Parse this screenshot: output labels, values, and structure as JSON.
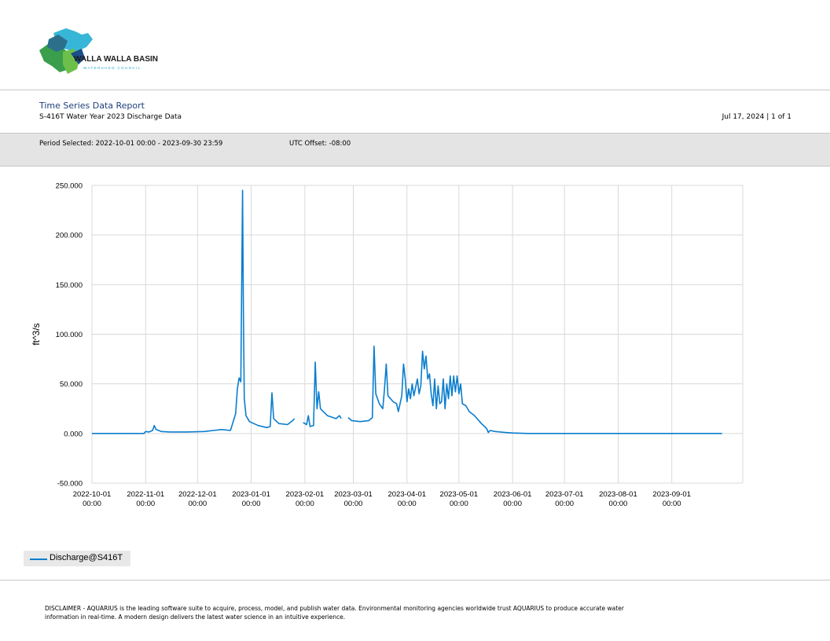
{
  "logo": {
    "line1": "WALLA WALLA BASIN",
    "line2": "WATERSHED COUNCIL"
  },
  "report": {
    "title": "Time Series Data Report",
    "subtitle": "S-416T Water Year 2023 Discharge Data",
    "date_page": "Jul 17, 2024 | 1 of 1",
    "period": "Period Selected: 2022-10-01 00:00 - 2023-09-30 23:59",
    "utc": "UTC Offset: -08:00"
  },
  "colors": {
    "series": "#0a7dcd",
    "grid": "#d9d9d9",
    "title": "#1f3f7a",
    "band": "#e4e4e4"
  },
  "chart_data": {
    "type": "line",
    "ylabel": "ft^3/s",
    "ylim": [
      -50,
      250
    ],
    "yticks": [
      {
        "v": 250,
        "label": "250.000"
      },
      {
        "v": 200,
        "label": "200.000"
      },
      {
        "v": 150,
        "label": "150.000"
      },
      {
        "v": 100,
        "label": "100.000"
      },
      {
        "v": 50,
        "label": "50.000"
      },
      {
        "v": 0,
        "label": "0.000"
      },
      {
        "v": -50,
        "label": "-50.000"
      }
    ],
    "xlim": [
      "2022-10-01",
      "2023-10-12"
    ],
    "xticks": [
      {
        "date": "2022-10-01",
        "label1": "2022-10-01",
        "label2": "00:00"
      },
      {
        "date": "2022-11-01",
        "label1": "2022-11-01",
        "label2": "00:00"
      },
      {
        "date": "2022-12-01",
        "label1": "2022-12-01",
        "label2": "00:00"
      },
      {
        "date": "2023-01-01",
        "label1": "2023-01-01",
        "label2": "00:00"
      },
      {
        "date": "2023-02-01",
        "label1": "2023-02-01",
        "label2": "00:00"
      },
      {
        "date": "2023-03-01",
        "label1": "2023-03-01",
        "label2": "00:00"
      },
      {
        "date": "2023-04-01",
        "label1": "2023-04-01",
        "label2": "00:00"
      },
      {
        "date": "2023-05-01",
        "label1": "2023-05-01",
        "label2": "00:00"
      },
      {
        "date": "2023-06-01",
        "label1": "2023-06-01",
        "label2": "00:00"
      },
      {
        "date": "2023-07-01",
        "label1": "2023-07-01",
        "label2": "00:00"
      },
      {
        "date": "2023-08-01",
        "label1": "2023-08-01",
        "label2": "00:00"
      },
      {
        "date": "2023-09-01",
        "label1": "2023-09-01",
        "label2": "00:00"
      }
    ],
    "grid": true,
    "legend_position": "bottom-left",
    "series": [
      {
        "name": "Discharge@S416T",
        "points": [
          [
            "2022-10-01",
            0
          ],
          [
            "2022-10-31",
            0
          ],
          [
            "2022-11-01",
            2
          ],
          [
            "2022-11-03",
            1.5
          ],
          [
            "2022-11-05",
            3
          ],
          [
            "2022-11-06",
            8
          ],
          [
            "2022-11-07",
            4
          ],
          [
            "2022-11-10",
            2
          ],
          [
            "2022-11-15",
            1.5
          ],
          [
            "2022-11-25",
            1.5
          ],
          [
            "2022-12-01",
            1.8
          ],
          [
            "2022-12-05",
            2
          ],
          [
            "2022-12-10",
            3
          ],
          [
            "2022-12-15",
            4
          ],
          [
            "2022-12-20",
            3
          ],
          [
            "2022-12-23",
            20
          ],
          [
            "2022-12-24",
            45
          ],
          [
            "2022-12-25",
            56
          ],
          [
            "2022-12-26",
            52
          ],
          [
            "2022-12-27",
            245
          ],
          [
            "2022-12-27T12:00",
            120
          ],
          [
            "2022-12-28",
            35
          ],
          [
            "2022-12-29",
            18
          ],
          [
            "2022-12-31",
            12
          ],
          [
            "2023-01-05",
            8
          ],
          [
            "2023-01-10",
            6
          ],
          [
            "2023-01-12",
            7
          ],
          [
            "2023-01-13",
            41
          ],
          [
            "2023-01-14",
            15
          ],
          [
            "2023-01-17",
            10
          ],
          [
            "2023-01-22",
            9
          ],
          [
            "2023-01-25",
            13
          ],
          [
            "2023-01-26",
            15
          ],
          [
            "2023-01-27",
            null
          ],
          [
            "2023-01-31",
            11
          ],
          [
            "2023-02-02",
            9
          ],
          [
            "2023-02-03",
            18
          ],
          [
            "2023-02-04",
            7
          ],
          [
            "2023-02-06",
            8
          ],
          [
            "2023-02-07",
            72
          ],
          [
            "2023-02-08",
            25
          ],
          [
            "2023-02-09",
            42
          ],
          [
            "2023-02-10",
            25
          ],
          [
            "2023-02-14",
            18
          ],
          [
            "2023-02-19",
            15
          ],
          [
            "2023-02-21",
            18
          ],
          [
            "2023-02-22",
            15
          ],
          [
            "2023-02-23",
            null
          ],
          [
            "2023-02-26",
            16
          ],
          [
            "2023-02-28",
            13
          ],
          [
            "2023-03-05",
            12
          ],
          [
            "2023-03-10",
            13
          ],
          [
            "2023-03-12",
            16
          ],
          [
            "2023-03-13",
            88
          ],
          [
            "2023-03-14",
            40
          ],
          [
            "2023-03-16",
            30
          ],
          [
            "2023-03-18",
            25
          ],
          [
            "2023-03-19",
            45
          ],
          [
            "2023-03-20",
            70
          ],
          [
            "2023-03-21",
            38
          ],
          [
            "2023-03-24",
            32
          ],
          [
            "2023-03-26",
            30
          ],
          [
            "2023-03-27",
            22
          ],
          [
            "2023-03-29",
            38
          ],
          [
            "2023-03-30",
            70
          ],
          [
            "2023-03-31",
            55
          ],
          [
            "2023-04-01",
            32
          ],
          [
            "2023-04-02",
            45
          ],
          [
            "2023-04-03",
            35
          ],
          [
            "2023-04-04",
            50
          ],
          [
            "2023-04-05",
            38
          ],
          [
            "2023-04-07",
            55
          ],
          [
            "2023-04-08",
            40
          ],
          [
            "2023-04-09",
            48
          ],
          [
            "2023-04-10",
            83
          ],
          [
            "2023-04-11",
            65
          ],
          [
            "2023-04-12",
            78
          ],
          [
            "2023-04-13",
            55
          ],
          [
            "2023-04-14",
            60
          ],
          [
            "2023-04-15",
            40
          ],
          [
            "2023-04-16",
            28
          ],
          [
            "2023-04-17",
            55
          ],
          [
            "2023-04-18",
            25
          ],
          [
            "2023-04-19",
            48
          ],
          [
            "2023-04-20",
            30
          ],
          [
            "2023-04-21",
            32
          ],
          [
            "2023-04-22",
            55
          ],
          [
            "2023-04-23",
            25
          ],
          [
            "2023-04-24",
            50
          ],
          [
            "2023-04-25",
            35
          ],
          [
            "2023-04-26",
            58
          ],
          [
            "2023-04-27",
            38
          ],
          [
            "2023-04-28",
            58
          ],
          [
            "2023-04-29",
            42
          ],
          [
            "2023-04-30",
            58
          ],
          [
            "2023-05-01",
            40
          ],
          [
            "2023-05-02",
            50
          ],
          [
            "2023-05-03",
            30
          ],
          [
            "2023-05-05",
            28
          ],
          [
            "2023-05-07",
            22
          ],
          [
            "2023-05-10",
            18
          ],
          [
            "2023-05-14",
            10
          ],
          [
            "2023-05-17",
            5
          ],
          [
            "2023-05-18",
            1
          ],
          [
            "2023-05-19",
            3
          ],
          [
            "2023-05-22",
            2
          ],
          [
            "2023-05-28",
            1
          ],
          [
            "2023-06-01",
            0.5
          ],
          [
            "2023-06-10",
            0
          ],
          [
            "2023-09-30",
            0
          ]
        ]
      }
    ]
  },
  "disclaimer": "DISCLAIMER - AQUARIUS is the leading software suite to acquire, process, model, and publish water data. Environmental monitoring agencies worldwide trust AQUARIUS to produce accurate water information in real-time. A modern design delivers the latest water science in an intuitive experience."
}
